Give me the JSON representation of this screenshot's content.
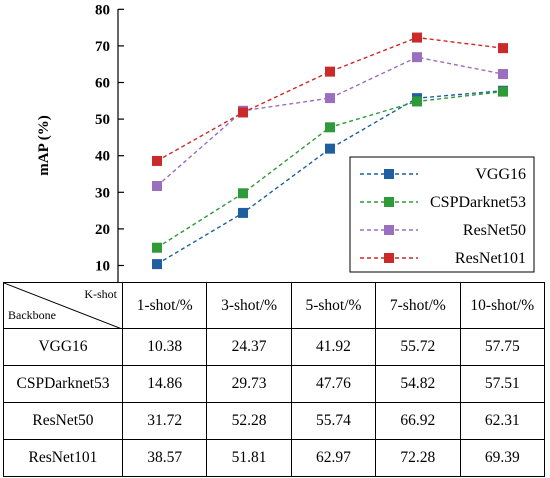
{
  "chart_data": {
    "type": "line",
    "ylabel": "mAP (%)",
    "ylim": [
      10,
      80
    ],
    "yticks": [
      10,
      20,
      30,
      40,
      50,
      60,
      70,
      80
    ],
    "categories": [
      "1-shot/%",
      "3-shot/%",
      "5-shot/%",
      "7-shot/%",
      "10-shot/%"
    ],
    "grid": false,
    "legend_position": "bottom-right",
    "series": [
      {
        "name": "VGG16",
        "color": "#1f5f9f",
        "values": [
          10.38,
          24.37,
          41.92,
          55.72,
          57.75
        ]
      },
      {
        "name": "CSPDarknet53",
        "color": "#2e9a3a",
        "values": [
          14.86,
          29.73,
          47.76,
          54.82,
          57.51
        ]
      },
      {
        "name": "ResNet50",
        "color": "#9a6fbf",
        "values": [
          31.72,
          52.28,
          55.74,
          66.92,
          62.31
        ]
      },
      {
        "name": "ResNet101",
        "color": "#cc2a2a",
        "values": [
          38.57,
          51.81,
          62.97,
          72.28,
          69.39
        ]
      }
    ]
  },
  "table": {
    "corner_top": "K-shot",
    "corner_bottom": "Backbone",
    "headers": [
      "1-shot/%",
      "3-shot/%",
      "5-shot/%",
      "7-shot/%",
      "10-shot/%"
    ],
    "rows": [
      {
        "label": "VGG16",
        "values": [
          "10.38",
          "24.37",
          "41.92",
          "55.72",
          "57.75"
        ]
      },
      {
        "label": "CSPDarknet53",
        "values": [
          "14.86",
          "29.73",
          "47.76",
          "54.82",
          "57.51"
        ]
      },
      {
        "label": "ResNet50",
        "values": [
          "31.72",
          "52.28",
          "55.74",
          "66.92",
          "62.31"
        ]
      },
      {
        "label": "ResNet101",
        "values": [
          "38.57",
          "51.81",
          "62.97",
          "72.28",
          "69.39"
        ]
      }
    ]
  }
}
